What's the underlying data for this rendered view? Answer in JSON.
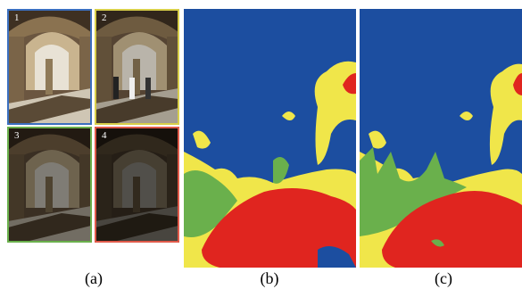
{
  "panel_a": {
    "images": [
      {
        "label": "1"
      },
      {
        "label": "2"
      },
      {
        "label": "3"
      },
      {
        "label": "4"
      }
    ],
    "caption": "(a)"
  },
  "panel_b": {
    "caption": "(b)"
  },
  "panel_c": {
    "caption": "(c)"
  }
}
